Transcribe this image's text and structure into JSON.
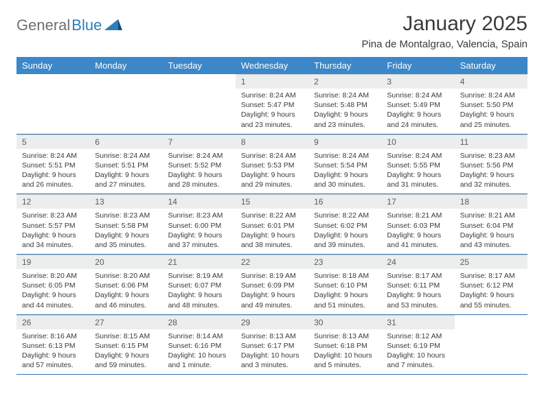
{
  "brand": {
    "name1": "General",
    "name2": "Blue"
  },
  "title": "January 2025",
  "location": "Pina de Montalgrao, Valencia, Spain",
  "colors": {
    "header_bg": "#3b87c8",
    "header_text": "#ffffff",
    "day_num_bg": "#eceded",
    "row_border": "#2f6fa8",
    "logo_gray": "#6f6f6f",
    "logo_blue": "#2f7db8"
  },
  "weekdays": [
    "Sunday",
    "Monday",
    "Tuesday",
    "Wednesday",
    "Thursday",
    "Friday",
    "Saturday"
  ],
  "weeks": [
    [
      null,
      null,
      null,
      {
        "n": "1",
        "sr": "Sunrise: 8:24 AM",
        "ss": "Sunset: 5:47 PM",
        "d1": "Daylight: 9 hours",
        "d2": "and 23 minutes."
      },
      {
        "n": "2",
        "sr": "Sunrise: 8:24 AM",
        "ss": "Sunset: 5:48 PM",
        "d1": "Daylight: 9 hours",
        "d2": "and 23 minutes."
      },
      {
        "n": "3",
        "sr": "Sunrise: 8:24 AM",
        "ss": "Sunset: 5:49 PM",
        "d1": "Daylight: 9 hours",
        "d2": "and 24 minutes."
      },
      {
        "n": "4",
        "sr": "Sunrise: 8:24 AM",
        "ss": "Sunset: 5:50 PM",
        "d1": "Daylight: 9 hours",
        "d2": "and 25 minutes."
      }
    ],
    [
      {
        "n": "5",
        "sr": "Sunrise: 8:24 AM",
        "ss": "Sunset: 5:51 PM",
        "d1": "Daylight: 9 hours",
        "d2": "and 26 minutes."
      },
      {
        "n": "6",
        "sr": "Sunrise: 8:24 AM",
        "ss": "Sunset: 5:51 PM",
        "d1": "Daylight: 9 hours",
        "d2": "and 27 minutes."
      },
      {
        "n": "7",
        "sr": "Sunrise: 8:24 AM",
        "ss": "Sunset: 5:52 PM",
        "d1": "Daylight: 9 hours",
        "d2": "and 28 minutes."
      },
      {
        "n": "8",
        "sr": "Sunrise: 8:24 AM",
        "ss": "Sunset: 5:53 PM",
        "d1": "Daylight: 9 hours",
        "d2": "and 29 minutes."
      },
      {
        "n": "9",
        "sr": "Sunrise: 8:24 AM",
        "ss": "Sunset: 5:54 PM",
        "d1": "Daylight: 9 hours",
        "d2": "and 30 minutes."
      },
      {
        "n": "10",
        "sr": "Sunrise: 8:24 AM",
        "ss": "Sunset: 5:55 PM",
        "d1": "Daylight: 9 hours",
        "d2": "and 31 minutes."
      },
      {
        "n": "11",
        "sr": "Sunrise: 8:23 AM",
        "ss": "Sunset: 5:56 PM",
        "d1": "Daylight: 9 hours",
        "d2": "and 32 minutes."
      }
    ],
    [
      {
        "n": "12",
        "sr": "Sunrise: 8:23 AM",
        "ss": "Sunset: 5:57 PM",
        "d1": "Daylight: 9 hours",
        "d2": "and 34 minutes."
      },
      {
        "n": "13",
        "sr": "Sunrise: 8:23 AM",
        "ss": "Sunset: 5:58 PM",
        "d1": "Daylight: 9 hours",
        "d2": "and 35 minutes."
      },
      {
        "n": "14",
        "sr": "Sunrise: 8:23 AM",
        "ss": "Sunset: 6:00 PM",
        "d1": "Daylight: 9 hours",
        "d2": "and 37 minutes."
      },
      {
        "n": "15",
        "sr": "Sunrise: 8:22 AM",
        "ss": "Sunset: 6:01 PM",
        "d1": "Daylight: 9 hours",
        "d2": "and 38 minutes."
      },
      {
        "n": "16",
        "sr": "Sunrise: 8:22 AM",
        "ss": "Sunset: 6:02 PM",
        "d1": "Daylight: 9 hours",
        "d2": "and 39 minutes."
      },
      {
        "n": "17",
        "sr": "Sunrise: 8:21 AM",
        "ss": "Sunset: 6:03 PM",
        "d1": "Daylight: 9 hours",
        "d2": "and 41 minutes."
      },
      {
        "n": "18",
        "sr": "Sunrise: 8:21 AM",
        "ss": "Sunset: 6:04 PM",
        "d1": "Daylight: 9 hours",
        "d2": "and 43 minutes."
      }
    ],
    [
      {
        "n": "19",
        "sr": "Sunrise: 8:20 AM",
        "ss": "Sunset: 6:05 PM",
        "d1": "Daylight: 9 hours",
        "d2": "and 44 minutes."
      },
      {
        "n": "20",
        "sr": "Sunrise: 8:20 AM",
        "ss": "Sunset: 6:06 PM",
        "d1": "Daylight: 9 hours",
        "d2": "and 46 minutes."
      },
      {
        "n": "21",
        "sr": "Sunrise: 8:19 AM",
        "ss": "Sunset: 6:07 PM",
        "d1": "Daylight: 9 hours",
        "d2": "and 48 minutes."
      },
      {
        "n": "22",
        "sr": "Sunrise: 8:19 AM",
        "ss": "Sunset: 6:09 PM",
        "d1": "Daylight: 9 hours",
        "d2": "and 49 minutes."
      },
      {
        "n": "23",
        "sr": "Sunrise: 8:18 AM",
        "ss": "Sunset: 6:10 PM",
        "d1": "Daylight: 9 hours",
        "d2": "and 51 minutes."
      },
      {
        "n": "24",
        "sr": "Sunrise: 8:17 AM",
        "ss": "Sunset: 6:11 PM",
        "d1": "Daylight: 9 hours",
        "d2": "and 53 minutes."
      },
      {
        "n": "25",
        "sr": "Sunrise: 8:17 AM",
        "ss": "Sunset: 6:12 PM",
        "d1": "Daylight: 9 hours",
        "d2": "and 55 minutes."
      }
    ],
    [
      {
        "n": "26",
        "sr": "Sunrise: 8:16 AM",
        "ss": "Sunset: 6:13 PM",
        "d1": "Daylight: 9 hours",
        "d2": "and 57 minutes."
      },
      {
        "n": "27",
        "sr": "Sunrise: 8:15 AM",
        "ss": "Sunset: 6:15 PM",
        "d1": "Daylight: 9 hours",
        "d2": "and 59 minutes."
      },
      {
        "n": "28",
        "sr": "Sunrise: 8:14 AM",
        "ss": "Sunset: 6:16 PM",
        "d1": "Daylight: 10 hours",
        "d2": "and 1 minute."
      },
      {
        "n": "29",
        "sr": "Sunrise: 8:13 AM",
        "ss": "Sunset: 6:17 PM",
        "d1": "Daylight: 10 hours",
        "d2": "and 3 minutes."
      },
      {
        "n": "30",
        "sr": "Sunrise: 8:13 AM",
        "ss": "Sunset: 6:18 PM",
        "d1": "Daylight: 10 hours",
        "d2": "and 5 minutes."
      },
      {
        "n": "31",
        "sr": "Sunrise: 8:12 AM",
        "ss": "Sunset: 6:19 PM",
        "d1": "Daylight: 10 hours",
        "d2": "and 7 minutes."
      },
      null
    ]
  ]
}
